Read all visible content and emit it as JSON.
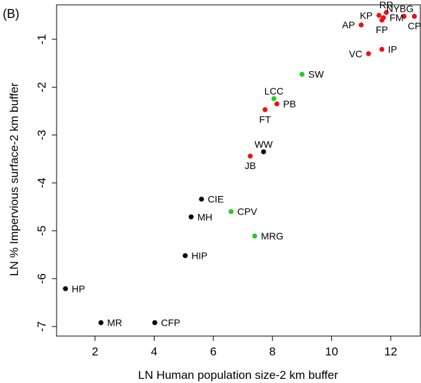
{
  "chart_data": {
    "type": "scatter",
    "panel_label": "(B)",
    "title": "",
    "xlabel": "LN Human population size-2 km buffer",
    "ylabel": "LN % Impervious surface-2 km buffer",
    "xlim": [
      0.7,
      13.0
    ],
    "ylim": [
      -7.2,
      -0.28
    ],
    "xticks": [
      2,
      4,
      6,
      8,
      10,
      12
    ],
    "yticks": [
      -1,
      -2,
      -3,
      -4,
      -5,
      -6,
      -7
    ],
    "grid": false,
    "legend": "none",
    "colors": {
      "black": "#000000",
      "green": "#22cc22",
      "red": "#ee1111"
    },
    "points": [
      {
        "label": "RR",
        "x": 11.85,
        "y": -0.44,
        "color": "red",
        "pos": "above"
      },
      {
        "label": "NYBG",
        "x": 12.45,
        "y": -0.52,
        "color": "red",
        "pos": "above-right"
      },
      {
        "label": "KP",
        "x": 11.6,
        "y": -0.5,
        "color": "red",
        "pos": "left"
      },
      {
        "label": "FM",
        "x": 11.75,
        "y": -0.55,
        "color": "red",
        "pos": "right"
      },
      {
        "label": "FP",
        "x": 11.7,
        "y": -0.6,
        "color": "red",
        "pos": "below"
      },
      {
        "label": "CP",
        "x": 12.8,
        "y": -0.52,
        "color": "red",
        "pos": "below"
      },
      {
        "label": "AP",
        "x": 11.0,
        "y": -0.7,
        "color": "red",
        "pos": "left"
      },
      {
        "label": "IP",
        "x": 11.7,
        "y": -1.21,
        "color": "red",
        "pos": "right"
      },
      {
        "label": "VC",
        "x": 11.25,
        "y": -1.3,
        "color": "red",
        "pos": "left"
      },
      {
        "label": "SW",
        "x": 9.0,
        "y": -1.73,
        "color": "green",
        "pos": "right"
      },
      {
        "label": "LCC",
        "x": 8.05,
        "y": -2.24,
        "color": "green",
        "pos": "above"
      },
      {
        "label": "PB",
        "x": 8.15,
        "y": -2.35,
        "color": "red",
        "pos": "right"
      },
      {
        "label": "FT",
        "x": 7.75,
        "y": -2.47,
        "color": "red",
        "pos": "below"
      },
      {
        "label": "WW",
        "x": 7.7,
        "y": -3.35,
        "color": "black",
        "pos": "above"
      },
      {
        "label": "JB",
        "x": 7.25,
        "y": -3.44,
        "color": "red",
        "pos": "below"
      },
      {
        "label": "CIE",
        "x": 5.6,
        "y": -4.34,
        "color": "black",
        "pos": "right"
      },
      {
        "label": "CPV",
        "x": 6.6,
        "y": -4.6,
        "color": "green",
        "pos": "right"
      },
      {
        "label": "MH",
        "x": 5.25,
        "y": -4.71,
        "color": "black",
        "pos": "right"
      },
      {
        "label": "MRG",
        "x": 7.4,
        "y": -5.11,
        "color": "green",
        "pos": "right"
      },
      {
        "label": "HIP",
        "x": 5.05,
        "y": -5.52,
        "color": "black",
        "pos": "right"
      },
      {
        "label": "HP",
        "x": 1.0,
        "y": -6.21,
        "color": "black",
        "pos": "right"
      },
      {
        "label": "MR",
        "x": 2.2,
        "y": -6.92,
        "color": "black",
        "pos": "right"
      },
      {
        "label": "CFP",
        "x": 4.02,
        "y": -6.92,
        "color": "black",
        "pos": "right"
      }
    ]
  }
}
